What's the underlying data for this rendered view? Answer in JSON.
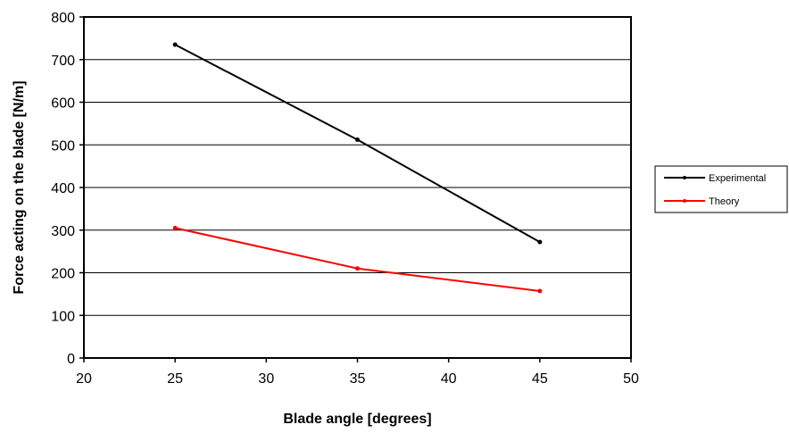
{
  "chart_data": {
    "type": "line",
    "title": "",
    "xlabel": "Blade angle [degrees]",
    "ylabel": "Force acting on the blade [N/m]",
    "xlim": [
      20,
      50
    ],
    "ylim": [
      0,
      800
    ],
    "xticks": [
      20,
      25,
      30,
      35,
      40,
      45,
      50
    ],
    "yticks": [
      0,
      100,
      200,
      300,
      400,
      500,
      600,
      700,
      800
    ],
    "grid": "horizontal",
    "legend_position": "right",
    "series": [
      {
        "name": "Experimental",
        "color": "#000000",
        "x": [
          25,
          35,
          45
        ],
        "y": [
          735,
          512,
          272
        ]
      },
      {
        "name": "Theory",
        "color": "#ff0000",
        "x": [
          25,
          35,
          45
        ],
        "y": [
          305,
          210,
          157
        ]
      }
    ]
  }
}
